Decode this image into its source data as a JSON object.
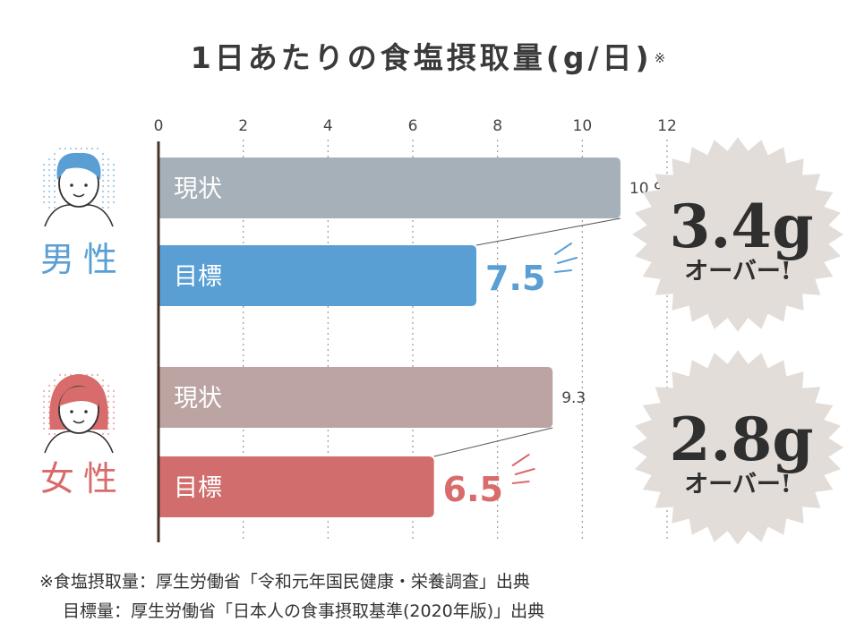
{
  "title": "1日あたりの食塩摂取量(g/日)",
  "title_mark": "※",
  "chart_data": {
    "type": "bar",
    "orientation": "horizontal",
    "xlim": [
      0,
      12
    ],
    "ticks": [
      0,
      2,
      4,
      6,
      8,
      10,
      12
    ],
    "grid": "vertical dotted",
    "groups": [
      {
        "name": "男性",
        "color": "#5a9fd4",
        "bars": [
          {
            "label": "現状",
            "value": 10.9,
            "value_label": "10.9",
            "color": "#a5b0b8"
          },
          {
            "label": "目標",
            "value": 7.5,
            "value_label": "7.5",
            "color": "#5a9fd4"
          }
        ],
        "callout": {
          "amount": "3.4g",
          "text": "オーバー!"
        }
      },
      {
        "name": "女性",
        "color": "#d86b6b",
        "bars": [
          {
            "label": "現状",
            "value": 9.3,
            "value_label": "9.3",
            "color": "#bca4a2"
          },
          {
            "label": "目標",
            "value": 6.5,
            "value_label": "6.5",
            "color": "#d16d6c"
          }
        ],
        "callout": {
          "amount": "2.8g",
          "text": "オーバー!"
        }
      }
    ]
  },
  "notes": [
    "※食塩摂取量：厚生労働省「令和元年国民健康・栄養調査」出典",
    "目標量：厚生労働省「日本人の食事摂取基準(2020年版)」出典"
  ]
}
